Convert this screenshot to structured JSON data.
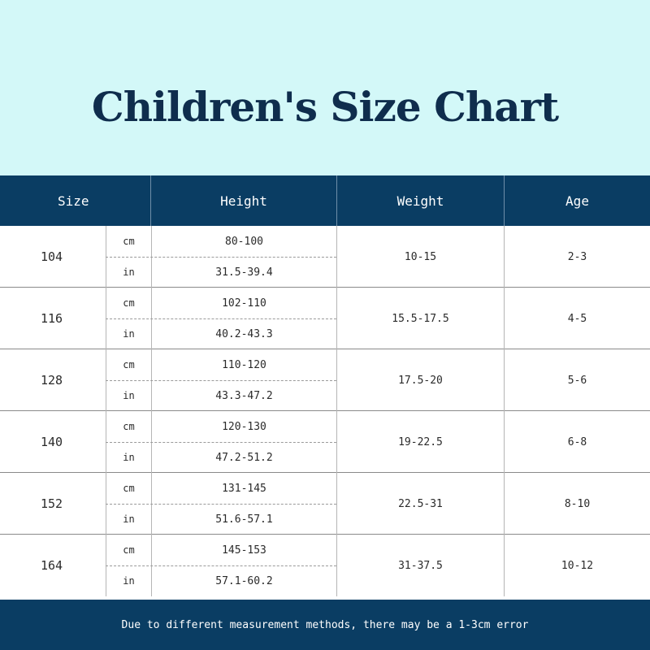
{
  "title": "Children's Size Chart",
  "headers": {
    "size": "Size",
    "height": "Height",
    "weight": "Weight",
    "age": "Age"
  },
  "rows": [
    {
      "size": "104",
      "cm_label": "cm",
      "in_label": "in",
      "height_cm": "80-100",
      "height_in": "31.5-39.4",
      "weight": "10-15",
      "age": "2-3"
    },
    {
      "size": "116",
      "cm_label": "cm",
      "in_label": "in",
      "height_cm": "102-110",
      "height_in": "40.2-43.3",
      "weight": "15.5-17.5",
      "age": "4-5"
    },
    {
      "size": "128",
      "cm_label": "cm",
      "in_label": "in",
      "height_cm": "110-120",
      "height_in": "43.3-47.2",
      "weight": "17.5-20",
      "age": "5-6"
    },
    {
      "size": "140",
      "cm_label": "cm",
      "in_label": "in",
      "height_cm": "120-130",
      "height_in": "47.2-51.2",
      "weight": "19-22.5",
      "age": "6-8"
    },
    {
      "size": "152",
      "cm_label": "cm",
      "in_label": "in",
      "height_cm": "131-145",
      "height_in": "51.6-57.1",
      "weight": "22.5-31",
      "age": "8-10"
    },
    {
      "size": "164",
      "cm_label": "cm",
      "in_label": "in",
      "height_cm": "145-153",
      "height_in": "57.1-60.2",
      "weight": "31-37.5",
      "age": "10-12"
    }
  ],
  "footer": "Due to different measurement methods, there may be a 1-3cm error",
  "colors": {
    "header_bg": "#d3f8f8",
    "bar_bg": "#0a3d63",
    "title": "#0f2d4d"
  }
}
